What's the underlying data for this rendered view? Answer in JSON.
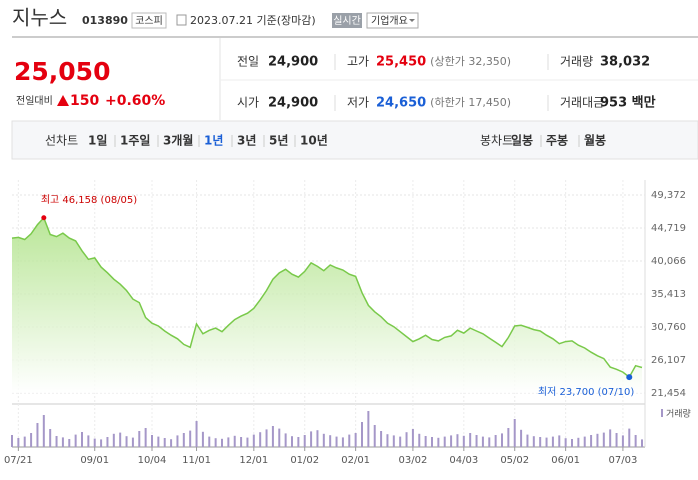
{
  "header": {
    "name": "지누스",
    "code": "013890",
    "market": "코스피",
    "date": "2023.07.21 기준(장마감)",
    "realtime": "실시간",
    "company": "기업개요"
  },
  "quote": {
    "price": "25,050",
    "change_label": "전일대비",
    "change": "150",
    "change_pct": "+0.60%",
    "stats": [
      [
        {
          "label": "전일",
          "value": "24,900"
        },
        {
          "label": "고가",
          "value": "25,450",
          "note": "(상한가 32,350)"
        },
        {
          "label": "거래량",
          "value": "38,032"
        }
      ],
      [
        {
          "label": "시가",
          "value": "24,900"
        },
        {
          "label": "저가",
          "value": "24,650",
          "note": "(하한가 17,450)"
        },
        {
          "label": "거래대금",
          "value": "953 백만"
        }
      ]
    ]
  },
  "tabs": {
    "line_label": "선차트",
    "line_periods": [
      "1일",
      "1주일",
      "3개월",
      "1년",
      "3년",
      "5년",
      "10년"
    ],
    "selected": 3,
    "candle_label": "봉차트",
    "candle_periods": [
      "일봉",
      "주봉",
      "월봉"
    ]
  },
  "chart_data": [
    {
      "type": "area",
      "color": "#79c94a",
      "grid": true,
      "categories": [
        null,
        "07/21",
        null,
        null,
        null,
        null,
        null,
        null,
        null,
        null,
        null,
        null,
        null,
        "09/01",
        null,
        null,
        null,
        null,
        null,
        null,
        null,
        null,
        "10/04",
        null,
        null,
        null,
        null,
        null,
        null,
        "11/01",
        null,
        null,
        null,
        null,
        null,
        null,
        null,
        null,
        "12/01",
        null,
        null,
        null,
        null,
        null,
        null,
        null,
        "01/02",
        null,
        null,
        null,
        null,
        null,
        null,
        null,
        "02/01",
        null,
        null,
        null,
        null,
        null,
        null,
        null,
        null,
        "03/02",
        null,
        null,
        null,
        null,
        null,
        null,
        null,
        "04/03",
        null,
        null,
        null,
        null,
        null,
        null,
        null,
        "05/02",
        null,
        null,
        null,
        null,
        null,
        null,
        null,
        "06/01",
        null,
        null,
        null,
        null,
        null,
        null,
        null,
        null,
        "07/03",
        null,
        null,
        null
      ],
      "values": [
        43300,
        43400,
        43100,
        43900,
        45200,
        46158,
        43800,
        43500,
        44000,
        43300,
        42900,
        41500,
        40300,
        40500,
        39200,
        38400,
        37500,
        36800,
        35900,
        34700,
        34200,
        32100,
        31300,
        30900,
        30200,
        29600,
        29100,
        28300,
        27900,
        31200,
        29800,
        30300,
        30600,
        30100,
        31000,
        31800,
        32300,
        32700,
        33400,
        34600,
        35900,
        37500,
        38400,
        38900,
        38200,
        37800,
        38600,
        39800,
        39300,
        38700,
        39500,
        39100,
        38800,
        38200,
        37900,
        35600,
        33800,
        32900,
        32200,
        31300,
        30800,
        30100,
        29400,
        28700,
        29100,
        29600,
        29000,
        28800,
        29300,
        29500,
        30300,
        29900,
        30600,
        30200,
        29800,
        29200,
        28600,
        28000,
        29300,
        30900,
        31000,
        30700,
        30400,
        30200,
        29600,
        29100,
        28400,
        28700,
        28800,
        28200,
        27800,
        27200,
        26700,
        26300,
        25100,
        24800,
        24400,
        23700,
        25300,
        25050
      ],
      "ylim": [
        21454,
        49372
      ],
      "yticks": [
        {
          "value": 21454,
          "label": "21,454"
        },
        {
          "value": 26107,
          "label": "26,107"
        },
        {
          "value": 30760,
          "label": "30,760"
        },
        {
          "value": 35413,
          "label": "35,413"
        },
        {
          "value": 40066,
          "label": "40,066"
        },
        {
          "value": 44719,
          "label": "44,719"
        },
        {
          "value": 49372,
          "label": "49,372"
        }
      ],
      "annotations": {
        "high": "최고 46,158 (08/05)",
        "low": "최저 23,700 (07/10)"
      }
    },
    {
      "type": "bar",
      "ylim": [
        0,
        200000
      ],
      "series": [
        {
          "name": "거래량",
          "color": "#a597c8",
          "values": [
            60000,
            45000,
            52000,
            70000,
            120000,
            160000,
            90000,
            55000,
            48000,
            40000,
            62000,
            75000,
            58000,
            42000,
            38000,
            50000,
            66000,
            72000,
            54000,
            47000,
            80000,
            95000,
            60000,
            52000,
            45000,
            39000,
            58000,
            70000,
            82000,
            130000,
            76000,
            52000,
            44000,
            41000,
            48000,
            56000,
            50000,
            47000,
            62000,
            74000,
            88000,
            105000,
            92000,
            68000,
            54000,
            50000,
            60000,
            78000,
            84000,
            66000,
            59000,
            52000,
            48000,
            62000,
            70000,
            125000,
            180000,
            110000,
            80000,
            64000,
            58000,
            52000,
            74000,
            90000,
            66000,
            55000,
            50000,
            46000,
            52000,
            58000,
            64000,
            56000,
            70000,
            60000,
            52000,
            48000,
            60000,
            68000,
            95000,
            140000,
            86000,
            62000,
            54000,
            50000,
            47000,
            52000,
            58000,
            44000,
            40000,
            46000,
            52000,
            60000,
            66000,
            72000,
            88000,
            70000,
            58000,
            92000,
            60000,
            38032
          ]
        }
      ]
    }
  ]
}
